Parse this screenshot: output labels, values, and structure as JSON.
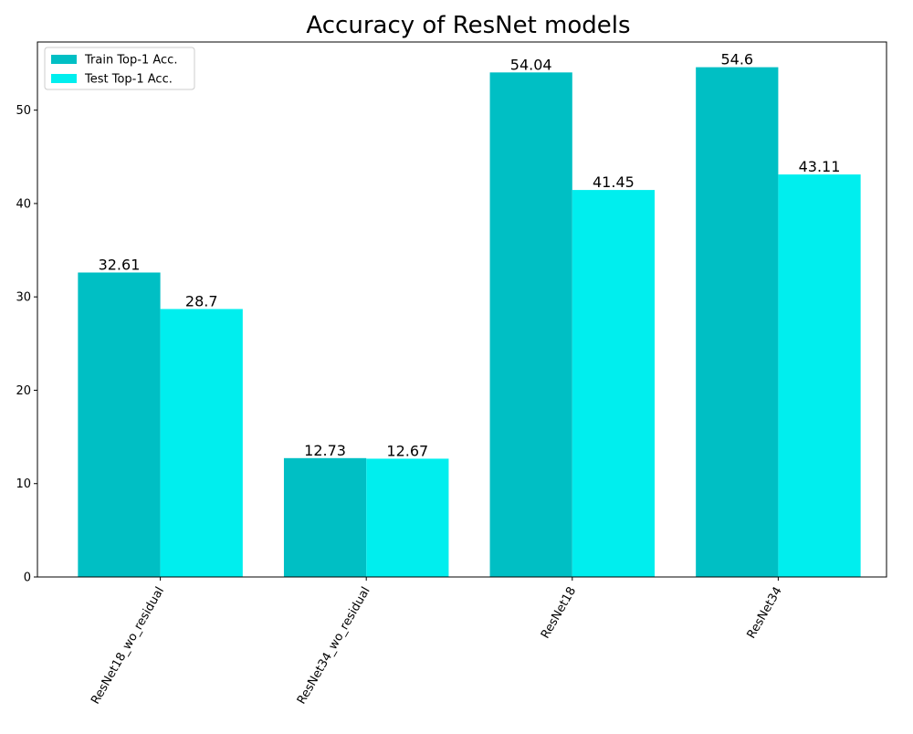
{
  "chart_data": {
    "type": "bar",
    "title": "Accuracy of ResNet models",
    "xlabel": "",
    "ylabel": "",
    "categories": [
      "ResNet18_wo_residual",
      "ResNet34_wo_residual",
      "ResNet18",
      "ResNet34"
    ],
    "series": [
      {
        "name": "Train Top-1 Acc.",
        "color": "#00bfc4",
        "values": [
          32.61,
          12.73,
          54.04,
          54.6
        ],
        "labels": [
          "32.61",
          "12.73",
          "54.04",
          "54.6"
        ]
      },
      {
        "name": "Test Top-1 Acc.",
        "color": "#00eeee",
        "values": [
          28.7,
          12.67,
          41.45,
          43.11
        ],
        "labels": [
          "28.7",
          "12.67",
          "41.45",
          "43.11"
        ]
      }
    ],
    "ylim": [
      0,
      57.3
    ],
    "yticks": [
      0,
      10,
      20,
      30,
      40,
      50
    ],
    "ytick_labels": [
      "0",
      "10",
      "20",
      "30",
      "40",
      "50"
    ],
    "grid": false,
    "legend_position": "top-left"
  }
}
